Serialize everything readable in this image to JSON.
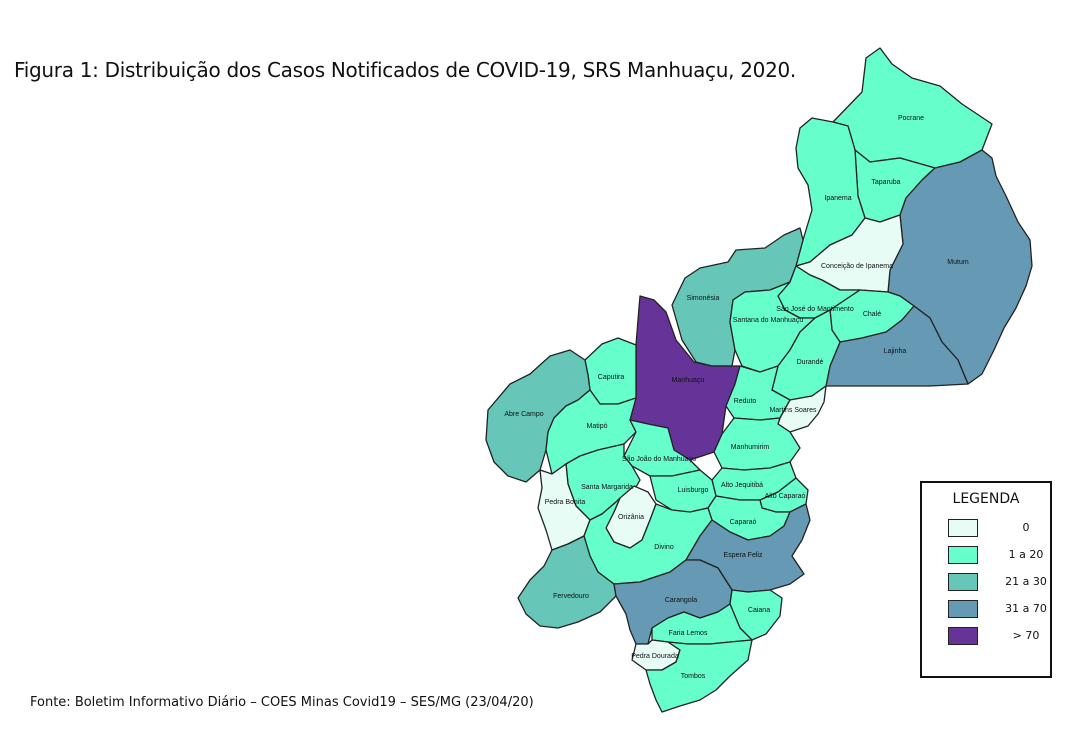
{
  "title": "Figura 1: Distribuição dos Casos Notificados de COVID-19, SRS Manhuaçu, 2020.",
  "source": "Fonte: Boletim Informativo Diário – COES Minas Covid19 – SES/MG (23/04/20)",
  "legend": {
    "title": "LEGENDA",
    "classes": [
      {
        "label": "0",
        "color": "#e6fcf5"
      },
      {
        "label": "1 a 20",
        "color": "#66ffcc"
      },
      {
        "label": "21 a 30",
        "color": "#66c6b8"
      },
      {
        "label": "31 a 70",
        "color": "#6699b3"
      },
      {
        "label": "> 70",
        "color": "#663399"
      }
    ]
  },
  "municipalities": [
    {
      "name": "Pocrane",
      "class": 1
    },
    {
      "name": "Taparuba",
      "class": 1
    },
    {
      "name": "Ipanema",
      "class": 1
    },
    {
      "name": "Mutum",
      "class": 3
    },
    {
      "name": "Conceição de Ipanema",
      "class": 0
    },
    {
      "name": "Simonésia",
      "class": 2
    },
    {
      "name": "São José do Mantimento",
      "class": 1
    },
    {
      "name": "Santana do Manhuaçu",
      "class": 1
    },
    {
      "name": "Chalé",
      "class": 1
    },
    {
      "name": "Lajinha",
      "class": 3
    },
    {
      "name": "Durandé",
      "class": 1
    },
    {
      "name": "Manhuaçu",
      "class": 4
    },
    {
      "name": "Caputira",
      "class": 1
    },
    {
      "name": "Abre Campo",
      "class": 2
    },
    {
      "name": "Reduto",
      "class": 1
    },
    {
      "name": "Martins Soares",
      "class": 0
    },
    {
      "name": "Matipó",
      "class": 1
    },
    {
      "name": "Manhumirim",
      "class": 1
    },
    {
      "name": "São João do Manhuaçu",
      "class": 1
    },
    {
      "name": "Alto Jequitibá",
      "class": 1
    },
    {
      "name": "Santa Margarida",
      "class": 1
    },
    {
      "name": "Luisburgo",
      "class": 1
    },
    {
      "name": "Alto Caparaó",
      "class": 1
    },
    {
      "name": "Pedra Bonita",
      "class": 0
    },
    {
      "name": "Orizânia",
      "class": 0
    },
    {
      "name": "Caparaó",
      "class": 1
    },
    {
      "name": "Divino",
      "class": 1
    },
    {
      "name": "Espera Feliz",
      "class": 3
    },
    {
      "name": "Fervedouro",
      "class": 2
    },
    {
      "name": "Carangola",
      "class": 3
    },
    {
      "name": "Caiana",
      "class": 1
    },
    {
      "name": "Faria Lemos",
      "class": 1
    },
    {
      "name": "Pedra Dourada",
      "class": 0
    },
    {
      "name": "Tombos",
      "class": 1
    }
  ]
}
